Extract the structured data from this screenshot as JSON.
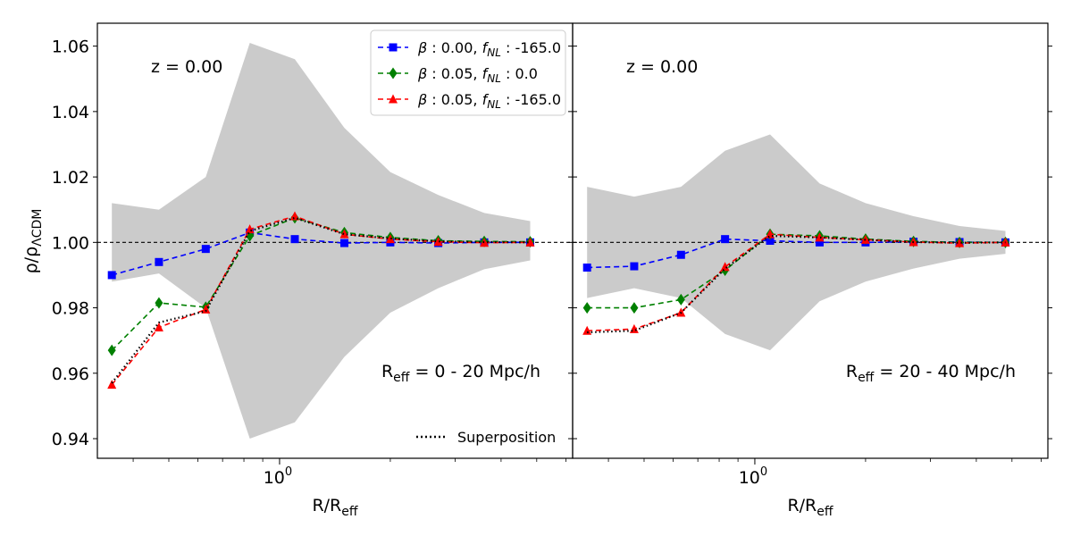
{
  "chart_data": {
    "type": "line",
    "xscale": "log",
    "ylim": [
      0.934,
      1.067
    ],
    "xlim": [
      0.3197,
      6.26
    ],
    "yticks": [
      0.94,
      0.96,
      0.98,
      1.0,
      1.02,
      1.04,
      1.06
    ],
    "ytick_labels": [
      "0.94",
      "0.96",
      "0.98",
      "1.00",
      "1.02",
      "1.04",
      "1.06"
    ],
    "xtick_label": "10",
    "xtick_exp": "0",
    "ylabel": {
      "base": "ρ/ρ",
      "sub": "ΛCDM"
    },
    "xlabel": {
      "base": "R/R",
      "sub": "eff"
    },
    "reference_line": 1.0,
    "legend": [
      {
        "name": "β : 0.00, fNL : -165.0",
        "beta": "0.00",
        "fnl": "-165.0",
        "color": "#0000ff",
        "marker": "square"
      },
      {
        "name": "β : 0.05, fNL : 0.0",
        "beta": "0.05",
        "fnl": "0.0",
        "color": "#008000",
        "marker": "diamond"
      },
      {
        "name": "β : 0.05, fNL : -165.0",
        "beta": "0.05",
        "fnl": "-165.0",
        "color": "#ff0000",
        "marker": "triangle"
      }
    ],
    "superposition_label": "Superposition",
    "panels": [
      {
        "id": "left",
        "z_label": "z = 0.00",
        "reff_label": {
          "pre": "R",
          "sub": "eff",
          "post": " = 0 - 20 Mpc/h"
        },
        "x": [
          0.35,
          0.47,
          0.63,
          0.83,
          1.1,
          1.5,
          2.0,
          2.7,
          3.6,
          4.8
        ],
        "band_upper": [
          1.012,
          1.01,
          1.02,
          1.061,
          1.056,
          1.035,
          1.0215,
          1.0145,
          1.009,
          1.0065
        ],
        "band_lower": [
          0.988,
          0.9905,
          0.98,
          0.94,
          0.945,
          0.965,
          0.9785,
          0.986,
          0.9918,
          0.9945
        ],
        "series": [
          {
            "name": "β : 0.00, fNL : -165.0",
            "color": "#0000ff",
            "marker": "square",
            "values": [
              0.99,
              0.994,
              0.998,
              1.003,
              1.001,
              0.9998,
              1.0,
              0.9998,
              1.0,
              1.0
            ]
          },
          {
            "name": "β : 0.05, fNL : 0.0",
            "color": "#008000",
            "marker": "diamond",
            "values": [
              0.967,
              0.9815,
              0.9802,
              1.002,
              1.0075,
              1.003,
              1.0015,
              1.0005,
              1.0003,
              1.0002
            ]
          },
          {
            "name": "β : 0.05, fNL : -165.0",
            "color": "#ff0000",
            "marker": "triangle",
            "values": [
              0.9565,
              0.974,
              0.9795,
              1.004,
              1.008,
              1.0025,
              1.001,
              1.0002,
              0.9999,
              1.0
            ]
          }
        ],
        "superposition": [
          0.957,
          0.9755,
          0.979,
          1.0035,
          1.0075,
          1.0025,
          1.0012,
          1.0003,
          1.0001,
          1.0
        ]
      },
      {
        "id": "right",
        "z_label": "z = 0.00",
        "reff_label": {
          "pre": "R",
          "sub": "eff",
          "post": " = 20 - 40 Mpc/h"
        },
        "x": [
          0.35,
          0.47,
          0.63,
          0.83,
          1.1,
          1.5,
          2.0,
          2.7,
          3.6,
          4.8
        ],
        "band_upper": [
          1.017,
          1.014,
          1.017,
          1.028,
          1.033,
          1.018,
          1.012,
          1.008,
          1.005,
          1.0035
        ],
        "band_lower": [
          0.983,
          0.986,
          0.983,
          0.972,
          0.967,
          0.982,
          0.988,
          0.992,
          0.995,
          0.9965
        ],
        "series": [
          {
            "name": "β : 0.00, fNL : -165.0",
            "color": "#0000ff",
            "marker": "square",
            "values": [
              0.9923,
              0.9927,
              0.9962,
              1.001,
              1.0005,
              1.0,
              1.0,
              1.0002,
              1.0001,
              1.0
            ]
          },
          {
            "name": "β : 0.05, fNL : 0.0",
            "color": "#008000",
            "marker": "diamond",
            "values": [
              0.98,
              0.98,
              0.9825,
              0.9915,
              1.0025,
              1.002,
              1.001,
              1.0003,
              1.0,
              1.0
            ]
          },
          {
            "name": "β : 0.05, fNL : -165.0",
            "color": "#ff0000",
            "marker": "triangle",
            "values": [
              0.973,
              0.9735,
              0.9785,
              0.9925,
              1.0025,
              1.0015,
              1.0008,
              1.0001,
              0.9998,
              1.0
            ]
          }
        ],
        "superposition": [
          0.9725,
          0.973,
          0.9785,
          0.992,
          1.002,
          1.0015,
          1.0008,
          1.0001,
          0.9999,
          1.0
        ]
      }
    ]
  }
}
